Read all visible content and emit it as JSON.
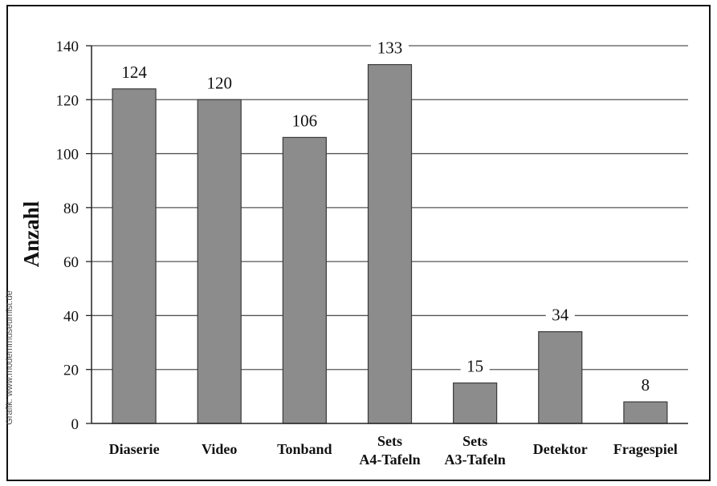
{
  "credit": "Grafik: www.modernmuseumist.de",
  "chart_data": {
    "type": "bar",
    "categories": [
      [
        "Diaserie"
      ],
      [
        "Video"
      ],
      [
        "Tonband"
      ],
      [
        "Sets",
        "A4-Tafeln"
      ],
      [
        "Sets",
        "A3-Tafeln"
      ],
      [
        "Detektor"
      ],
      [
        "Fragespiel"
      ]
    ],
    "values": [
      124,
      120,
      106,
      133,
      15,
      34,
      8
    ],
    "ylabel": "Anzahl",
    "ylim": [
      0,
      140
    ],
    "yticks": [
      0,
      20,
      40,
      60,
      80,
      100,
      120,
      140
    ],
    "grid": true,
    "bar_color": "#8c8c8c",
    "bar_stroke": "#3a3a3a",
    "grid_color": "#555555"
  }
}
